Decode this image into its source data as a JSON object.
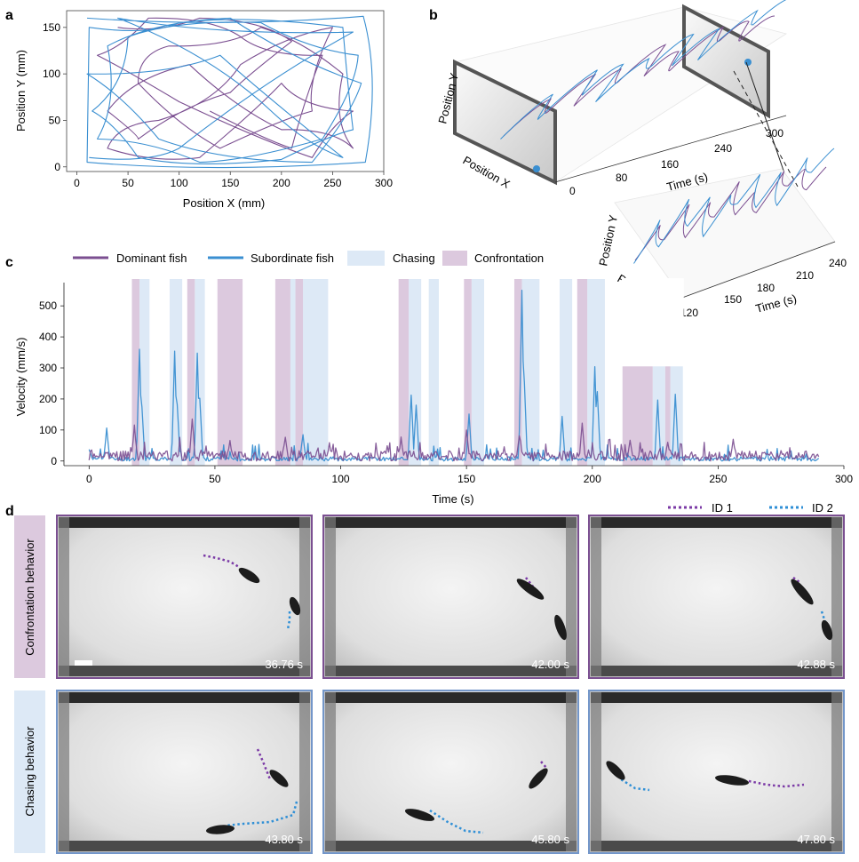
{
  "panels": {
    "a": {
      "letter": "a"
    },
    "b": {
      "letter": "b"
    },
    "c": {
      "letter": "c"
    },
    "d": {
      "letter": "d"
    }
  },
  "colors": {
    "dominant": "#7b4f91",
    "subordinate": "#3a8fd1",
    "chasing_fill": "#dde9f6",
    "confront_fill": "#dcc9de",
    "dotted_id1": "#7b3aa6",
    "dotted_id2": "#2f8fd6"
  },
  "chart_data": [
    {
      "panel": "a",
      "type": "line",
      "title": "",
      "xlabel": "Position X (mm)",
      "ylabel": "Position Y (mm)",
      "xlim": [
        -10,
        300
      ],
      "ylim": [
        -5,
        168
      ],
      "xticks": [
        0,
        50,
        100,
        150,
        200,
        250,
        300
      ],
      "yticks": [
        0,
        50,
        100,
        150
      ],
      "series": [
        {
          "name": "Dominant fish",
          "points": [
            [
              40,
              150
            ],
            [
              120,
              160
            ],
            [
              210,
              135
            ],
            [
              150,
              80
            ],
            [
              60,
              30
            ],
            [
              30,
              60
            ],
            [
              110,
              110
            ],
            [
              200,
              40
            ],
            [
              270,
              20
            ],
            [
              260,
              100
            ],
            [
              180,
              150
            ],
            [
              90,
              130
            ],
            [
              60,
              90
            ],
            [
              140,
              20
            ],
            [
              230,
              60
            ],
            [
              250,
              150
            ],
            [
              160,
              110
            ],
            [
              80,
              50
            ],
            [
              30,
              20
            ],
            [
              120,
              10
            ],
            [
              200,
              90
            ],
            [
              270,
              60
            ],
            [
              230,
              10
            ],
            [
              100,
              70
            ],
            [
              20,
              120
            ],
            [
              70,
              160
            ],
            [
              160,
              140
            ],
            [
              240,
              120
            ],
            [
              210,
              20
            ],
            [
              130,
              60
            ]
          ]
        },
        {
          "name": "Subordinate fish",
          "points": [
            [
              10,
              160
            ],
            [
              280,
              162
            ],
            [
              282,
              5
            ],
            [
              10,
              5
            ],
            [
              12,
              150
            ],
            [
              100,
              155
            ],
            [
              260,
              150
            ],
            [
              270,
              40
            ],
            [
              200,
              8
            ],
            [
              60,
              10
            ],
            [
              15,
              60
            ],
            [
              50,
              140
            ],
            [
              180,
              155
            ],
            [
              275,
              120
            ],
            [
              240,
              30
            ],
            [
              120,
              5
            ],
            [
              20,
              30
            ],
            [
              30,
              130
            ],
            [
              150,
              160
            ],
            [
              278,
              90
            ],
            [
              230,
              5
            ],
            [
              80,
              30
            ],
            [
              10,
              100
            ],
            [
              140,
              120
            ],
            [
              260,
              10
            ],
            [
              190,
              60
            ],
            [
              40,
              160
            ],
            [
              270,
              145
            ],
            [
              100,
              20
            ],
            [
              12,
              10
            ]
          ]
        }
      ]
    },
    {
      "panel": "b",
      "type": "line",
      "title": "",
      "xlabel": "Time (s)",
      "ylabel": "Position Y",
      "zlabel": "Position X",
      "tick_labels": [
        "0",
        "80",
        "160",
        "240",
        "300"
      ],
      "inset": {
        "xlabel": "Time (s)",
        "ylabel": "Position Y",
        "zlabel": "Position X",
        "tick_labels": [
          "120",
          "150",
          "180",
          "210",
          "240"
        ]
      },
      "series": [
        {
          "name": "Dominant fish",
          "points": [
            [
              0,
              0.1
            ],
            [
              20,
              0.6
            ],
            [
              40,
              0.3
            ],
            [
              60,
              0.8
            ],
            [
              80,
              0.2
            ],
            [
              100,
              0.7
            ],
            [
              120,
              0.4
            ],
            [
              140,
              0.9
            ],
            [
              160,
              0.3
            ],
            [
              180,
              0.6
            ],
            [
              200,
              0.2
            ],
            [
              220,
              0.8
            ],
            [
              240,
              0.5
            ],
            [
              260,
              0.7
            ],
            [
              280,
              0.3
            ],
            [
              300,
              0.6
            ]
          ]
        },
        {
          "name": "Subordinate fish",
          "points": [
            [
              0,
              0.05
            ],
            [
              15,
              0.7
            ],
            [
              35,
              0.2
            ],
            [
              55,
              0.9
            ],
            [
              75,
              0.4
            ],
            [
              95,
              0.8
            ],
            [
              115,
              0.1
            ],
            [
              135,
              0.7
            ],
            [
              155,
              0.5
            ],
            [
              175,
              0.9
            ],
            [
              195,
              0.3
            ],
            [
              215,
              0.8
            ],
            [
              235,
              0.2
            ],
            [
              255,
              0.9
            ],
            [
              275,
              0.6
            ],
            [
              300,
              0.9
            ]
          ]
        }
      ]
    },
    {
      "panel": "c",
      "type": "line",
      "title": "",
      "xlabel": "Time (s)",
      "ylabel": "Velocity (mm/s)",
      "xlim": [
        -10,
        300
      ],
      "ylim": [
        -15,
        575
      ],
      "xticks": [
        0,
        50,
        100,
        150,
        200,
        250,
        300
      ],
      "yticks": [
        0,
        100,
        200,
        300,
        400,
        500
      ],
      "legend": [
        "Dominant fish",
        "Subordinate fish",
        "Chasing",
        "Confrontation"
      ],
      "legend_position": "top",
      "confrontation_intervals": [
        [
          17,
          20
        ],
        [
          39,
          42
        ],
        [
          51,
          61
        ],
        [
          74,
          80
        ],
        [
          82,
          85
        ],
        [
          123,
          127
        ],
        [
          149,
          152
        ],
        [
          169,
          172
        ],
        [
          194,
          198
        ],
        [
          212,
          224
        ],
        [
          229,
          231
        ]
      ],
      "chasing_intervals": [
        [
          20,
          24
        ],
        [
          32,
          37
        ],
        [
          42,
          46
        ],
        [
          80,
          82
        ],
        [
          85,
          95
        ],
        [
          127,
          132
        ],
        [
          135,
          139
        ],
        [
          152,
          157
        ],
        [
          172,
          179
        ],
        [
          187,
          192
        ],
        [
          198,
          205
        ],
        [
          224,
          229
        ],
        [
          231,
          236
        ]
      ],
      "chasing_band_top_intervals": [
        [
          212,
          236
        ]
      ],
      "chasing_band_top_value": 305,
      "series": [
        {
          "name": "Subordinate fish",
          "peaks": [
            [
              0,
              35
            ],
            [
              7,
              100
            ],
            [
              20,
              355
            ],
            [
              21,
              170
            ],
            [
              34,
              350
            ],
            [
              35,
              180
            ],
            [
              43,
              345
            ],
            [
              44,
              200
            ],
            [
              85,
              80
            ],
            [
              128,
              210
            ],
            [
              130,
              180
            ],
            [
              151,
              150
            ],
            [
              172,
              545
            ],
            [
              173,
              250
            ],
            [
              188,
              140
            ],
            [
              201,
              300
            ],
            [
              202,
              220
            ],
            [
              226,
              190
            ],
            [
              233,
              215
            ]
          ]
        },
        {
          "name": "Dominant fish",
          "peaks": [
            [
              18,
              110
            ],
            [
              41,
              130
            ],
            [
              56,
              60
            ],
            [
              78,
              75
            ],
            [
              124,
              70
            ],
            [
              150,
              95
            ],
            [
              171,
              80
            ],
            [
              196,
              120
            ],
            [
              215,
              60
            ],
            [
              230,
              60
            ],
            [
              256,
              65
            ]
          ]
        }
      ]
    }
  ],
  "panel_d": {
    "legend": {
      "id1": "ID 1",
      "id2": "ID 2"
    },
    "rows": [
      {
        "label": "Confrontation behavior",
        "frames": [
          {
            "time": "36.76 s"
          },
          {
            "time": "42.00 s"
          },
          {
            "time": "42.88 s"
          }
        ]
      },
      {
        "label": "Chasing behavior",
        "frames": [
          {
            "time": "43.80 s"
          },
          {
            "time": "45.80 s"
          },
          {
            "time": "47.80 s"
          }
        ]
      }
    ]
  }
}
